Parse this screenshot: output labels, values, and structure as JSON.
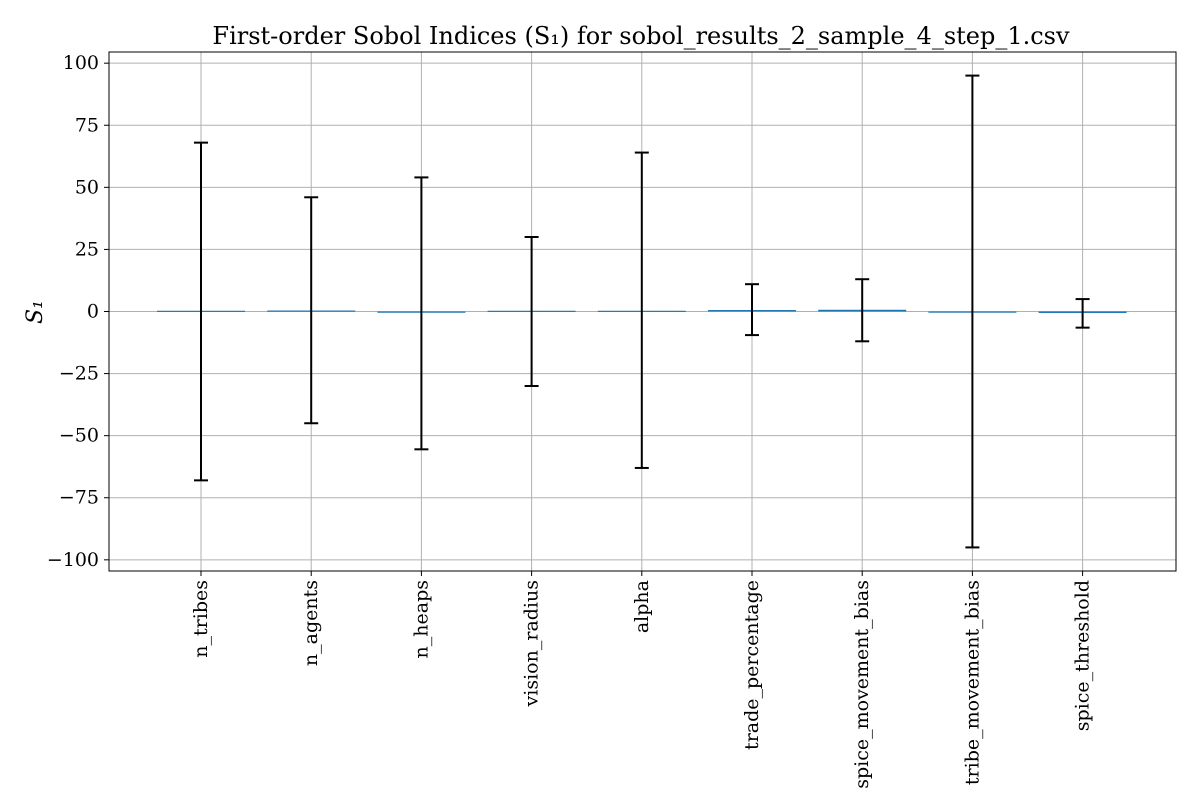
{
  "chart_data": {
    "type": "bar",
    "title": "First-order Sobol Indices (S₁) for sobol_results_2_sample_4_step_1.csv",
    "ylabel": "S₁",
    "xlabel": "",
    "categories": [
      "n_tribes",
      "n_agents",
      "n_heaps",
      "vision_radius",
      "alpha",
      "trade_percentage",
      "spice_movement_bias",
      "tribe_movement_bias",
      "spice_threshold"
    ],
    "values": [
      0.3,
      0.4,
      -0.5,
      0.3,
      0.3,
      0.6,
      0.7,
      0.0,
      -0.6
    ],
    "error_low": [
      -68,
      -45,
      -55.5,
      -30,
      -63,
      -9.5,
      -12,
      -95,
      -6.5
    ],
    "error_high": [
      68,
      46,
      54,
      30,
      64,
      11,
      13,
      95,
      5
    ],
    "ylim": [
      -104.5,
      104.5
    ],
    "yticks": [
      -100,
      -75,
      -50,
      -25,
      0,
      25,
      50,
      75,
      100
    ],
    "ytick_labels": [
      "−100",
      "−75",
      "−50",
      "−25",
      "0",
      "25",
      "50",
      "75",
      "100"
    ],
    "grid": true,
    "colors": {
      "bar": "#1f77b4",
      "error": "#000000",
      "grid": "#b0b0b0"
    }
  }
}
